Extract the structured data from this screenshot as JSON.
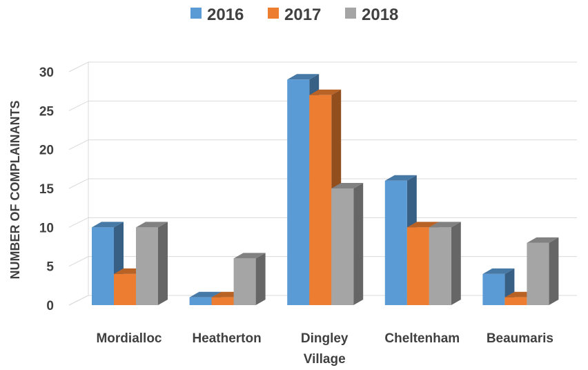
{
  "chart_data": {
    "type": "bar",
    "style": "3d-clustered-column",
    "categories": [
      [
        "Mordialloc"
      ],
      [
        "Heatherton"
      ],
      [
        "Dingley",
        "Village"
      ],
      [
        "Cheltenham"
      ],
      [
        "Beaumaris"
      ]
    ],
    "series": [
      {
        "name": "2016",
        "color": "#5B9BD5",
        "values": [
          10,
          1,
          29,
          16,
          4
        ]
      },
      {
        "name": "2017",
        "color": "#ED7D31",
        "values": [
          4,
          1,
          27,
          10,
          1
        ]
      },
      {
        "name": "2018",
        "color": "#A5A5A5",
        "values": [
          10,
          6,
          15,
          10,
          8
        ]
      }
    ],
    "ylabel": "NUMBER OF COMPLAINANTS",
    "ylim": [
      0,
      30
    ],
    "yticks": [
      0,
      5,
      10,
      15,
      20,
      25,
      30
    ],
    "grid": true,
    "legend_position": "top"
  }
}
